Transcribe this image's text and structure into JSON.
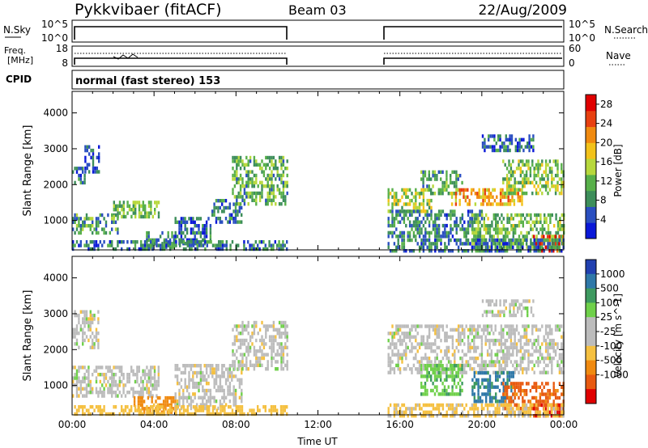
{
  "header": {
    "station": "Pykkvibaer (fitACF)",
    "beam": "Beam 03",
    "date": "22/Aug/2009"
  },
  "noise_panel": {
    "left_label": "N.Sky",
    "right_label": "N.Search",
    "left_ticks": [
      "10^5",
      "10^0"
    ],
    "right_ticks": [
      "10^5",
      "10^0"
    ]
  },
  "freq_panel": {
    "left_label_1": "Freq.",
    "left_label_2": "[MHz]",
    "right_label": "Nave",
    "left_ticks": [
      "18",
      "8"
    ],
    "right_ticks": [
      "60",
      "0"
    ]
  },
  "cpid_panel": {
    "label": "CPID",
    "text": "normal (fast stereo) 153"
  },
  "colors": {
    "scale": [
      "#0a18d8",
      "#2a4fc0",
      "#3d8e5a",
      "#58b04a",
      "#b7d83c",
      "#f2c21a",
      "#f08a10",
      "#e84010",
      "#e00000"
    ],
    "velocity": [
      "#2140b0",
      "#2f78a8",
      "#3e9a60",
      "#6fd04a",
      "#bcbcbc",
      "#bcbcbc",
      "#f5c040",
      "#f08a10",
      "#e85a10",
      "#e00000"
    ],
    "ground": "#bcbcbc"
  },
  "chart_data": [
    {
      "type": "heatmap",
      "name_hint": "power",
      "ylabel": "Slant Range [km]",
      "xlim": [
        "00:00",
        "24:00"
      ],
      "ylim": [
        180,
        4600
      ],
      "yticks": [
        "1000",
        "2000",
        "3000",
        "4000"
      ],
      "colorbar_label": "Power [dB]",
      "colorbar_ticks": [
        "4",
        "8",
        "12",
        "16",
        "20",
        "24",
        "28"
      ],
      "colorbar_range": [
        0,
        30
      ],
      "data_gap_hours": [
        10.5,
        15.4
      ],
      "bands": [
        {
          "t": [
            0.0,
            0.6
          ],
          "r": [
            2050,
            2500
          ],
          "v": 6
        },
        {
          "t": [
            0.6,
            1.3
          ],
          "r": [
            2400,
            3100
          ],
          "v": 5
        },
        {
          "t": [
            0.0,
            2.2
          ],
          "r": [
            700,
            1200
          ],
          "v": 10
        },
        {
          "t": [
            2.0,
            4.2
          ],
          "r": [
            1100,
            1550
          ],
          "v": 12
        },
        {
          "t": [
            3.6,
            5.0
          ],
          "r": [
            300,
            700
          ],
          "v": 8
        },
        {
          "t": [
            5.0,
            6.8
          ],
          "r": [
            400,
            1100
          ],
          "v": 6
        },
        {
          "t": [
            6.8,
            8.3
          ],
          "r": [
            1000,
            1600
          ],
          "v": 7
        },
        {
          "t": [
            7.8,
            10.5
          ],
          "r": [
            1500,
            2800
          ],
          "v": 11
        },
        {
          "t": [
            0.0,
            10.5
          ],
          "r": [
            200,
            450
          ],
          "v": 7
        },
        {
          "t": [
            15.4,
            17.5
          ],
          "r": [
            1300,
            1900
          ],
          "v": 14
        },
        {
          "t": [
            17.0,
            19.0
          ],
          "r": [
            1800,
            2400
          ],
          "v": 10
        },
        {
          "t": [
            18.5,
            22.0
          ],
          "r": [
            1500,
            1900
          ],
          "v": 20
        },
        {
          "t": [
            21.0,
            24.0
          ],
          "r": [
            1800,
            2700
          ],
          "v": 13
        },
        {
          "t": [
            15.4,
            20.0
          ],
          "r": [
            600,
            1300
          ],
          "v": 8
        },
        {
          "t": [
            19.5,
            24.0
          ],
          "r": [
            300,
            1200
          ],
          "v": 12
        },
        {
          "t": [
            22.5,
            24.0
          ],
          "r": [
            200,
            600
          ],
          "v": 26
        },
        {
          "t": [
            20.0,
            22.5
          ],
          "r": [
            3000,
            3400
          ],
          "v": 6
        },
        {
          "t": [
            15.4,
            24.0
          ],
          "r": [
            200,
            500
          ],
          "v": 7
        }
      ]
    },
    {
      "type": "heatmap",
      "name_hint": "velocity",
      "ylabel": "Slant Range [km]",
      "xlabel": "Time UT",
      "xlim": [
        "00:00",
        "24:00"
      ],
      "ylim": [
        180,
        4600
      ],
      "yticks": [
        "1000",
        "2000",
        "3000",
        "4000"
      ],
      "xticks": [
        "00:00",
        "04:00",
        "08:00",
        "12:00",
        "16:00",
        "20:00",
        "00:00"
      ],
      "colorbar_label": "Velocity [m s^-1]",
      "colorbar_ticks": [
        "1000",
        "500",
        "100",
        "25",
        "-25",
        "-100",
        "-500",
        "-1000"
      ],
      "data_gap_hours": [
        10.5,
        15.4
      ],
      "bands": [
        {
          "t": [
            0.0,
            1.3
          ],
          "r": [
            2050,
            3100
          ],
          "v": 0
        },
        {
          "t": [
            0.0,
            4.2
          ],
          "r": [
            700,
            1550
          ],
          "v": 0
        },
        {
          "t": [
            3.0,
            5.0
          ],
          "r": [
            300,
            700
          ],
          "v": -150
        },
        {
          "t": [
            5.0,
            8.3
          ],
          "r": [
            400,
            1600
          ],
          "v": 0
        },
        {
          "t": [
            7.8,
            10.5
          ],
          "r": [
            1500,
            2800
          ],
          "v": 0
        },
        {
          "t": [
            0.0,
            10.5
          ],
          "r": [
            200,
            450
          ],
          "v": -60
        },
        {
          "t": [
            15.4,
            24.0
          ],
          "r": [
            1400,
            2700
          ],
          "v": 0
        },
        {
          "t": [
            17.0,
            19.0
          ],
          "r": [
            800,
            1600
          ],
          "v": 80
        },
        {
          "t": [
            19.5,
            21.5
          ],
          "r": [
            600,
            1400
          ],
          "v": 300
        },
        {
          "t": [
            21.0,
            24.0
          ],
          "r": [
            400,
            1100
          ],
          "v": -400
        },
        {
          "t": [
            22.5,
            24.0
          ],
          "r": [
            200,
            500
          ],
          "v": -800
        },
        {
          "t": [
            15.4,
            24.0
          ],
          "r": [
            200,
            500
          ],
          "v": -40
        },
        {
          "t": [
            20.0,
            22.5
          ],
          "r": [
            3000,
            3400
          ],
          "v": 0
        }
      ]
    }
  ]
}
